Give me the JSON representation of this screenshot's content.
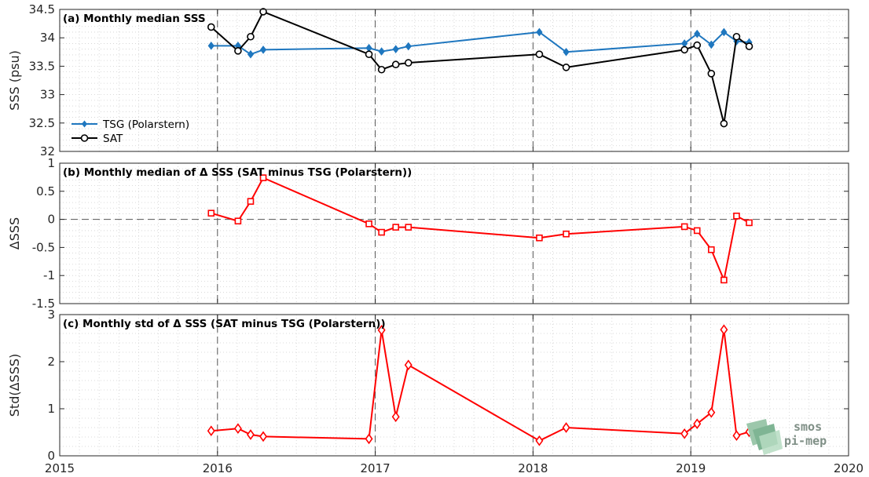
{
  "chart_data": [
    {
      "type": "line",
      "title": "(a) Monthly median SSS",
      "ylabel": "SSS (psu)",
      "xlim": [
        2015,
        2020
      ],
      "ylim": [
        32,
        34.5
      ],
      "yticks": [
        32,
        32.5,
        33,
        33.5,
        34,
        34.5
      ],
      "ytick_labels": [
        "32",
        "32.5",
        "33",
        "33.5",
        "34",
        "34.5"
      ],
      "grid": true,
      "legend_position": "lower-left",
      "series": [
        {
          "name": "TSG (Polarstern)",
          "color": "#1f77bf",
          "marker": "diamond-filled",
          "x": [
            2015.96,
            2016.13,
            2016.21,
            2016.29,
            2016.96,
            2017.04,
            2017.13,
            2017.21,
            2018.04,
            2018.21,
            2018.96,
            2019.04,
            2019.13,
            2019.21,
            2019.29,
            2019.37
          ],
          "values": [
            33.86,
            33.86,
            33.71,
            33.79,
            33.82,
            33.76,
            33.8,
            33.85,
            34.1,
            33.75,
            33.9,
            34.07,
            33.88,
            34.1,
            33.94,
            33.92
          ]
        },
        {
          "name": "SAT",
          "color": "#000000",
          "marker": "circle-open",
          "x": [
            2015.96,
            2016.13,
            2016.21,
            2016.29,
            2016.96,
            2017.04,
            2017.13,
            2017.21,
            2018.04,
            2018.21,
            2018.96,
            2019.04,
            2019.13,
            2019.21,
            2019.29,
            2019.37
          ],
          "values": [
            34.19,
            33.77,
            34.02,
            34.46,
            33.71,
            33.44,
            33.53,
            33.56,
            33.71,
            33.48,
            33.79,
            33.87,
            33.37,
            32.49,
            34.02,
            33.85
          ]
        }
      ]
    },
    {
      "type": "line",
      "title": "(b) Monthly median of Δ SSS (SAT minus TSG (Polarstern))",
      "ylabel": "ΔSSS",
      "xlim": [
        2015,
        2020
      ],
      "ylim": [
        -1.5,
        1
      ],
      "yticks": [
        -1.5,
        -1,
        -0.5,
        0,
        0.5,
        1
      ],
      "ytick_labels": [
        "-1.5",
        "-1",
        "-0.5",
        "0",
        "0.5",
        "1"
      ],
      "grid": true,
      "reference_line": 0,
      "series": [
        {
          "color": "#ff0000",
          "marker": "square-open",
          "x": [
            2015.96,
            2016.13,
            2016.21,
            2016.29,
            2016.96,
            2017.04,
            2017.13,
            2017.21,
            2018.04,
            2018.21,
            2018.96,
            2019.04,
            2019.13,
            2019.21,
            2019.29,
            2019.37
          ],
          "values": [
            0.11,
            -0.03,
            0.32,
            0.74,
            -0.08,
            -0.23,
            -0.14,
            -0.14,
            -0.33,
            -0.26,
            -0.13,
            -0.2,
            -0.54,
            -1.08,
            0.06,
            -0.06
          ]
        }
      ]
    },
    {
      "type": "line",
      "title": "(c) Monthly std of Δ SSS (SAT minus TSG (Polarstern))",
      "ylabel": "Std(ΔSSS)",
      "xlim": [
        2015,
        2020
      ],
      "ylim": [
        0,
        3
      ],
      "yticks": [
        0,
        1,
        2,
        3
      ],
      "ytick_labels": [
        "0",
        "1",
        "2",
        "3"
      ],
      "xticks": [
        2015,
        2016,
        2017,
        2018,
        2019,
        2020
      ],
      "xtick_labels": [
        "2015",
        "2016",
        "2017",
        "2018",
        "2019",
        "2020"
      ],
      "grid": true,
      "series": [
        {
          "color": "#ff0000",
          "marker": "diamond-open",
          "x": [
            2015.96,
            2016.13,
            2016.21,
            2016.29,
            2016.96,
            2017.04,
            2017.13,
            2017.21,
            2018.04,
            2018.21,
            2018.96,
            2019.04,
            2019.13,
            2019.21,
            2019.29,
            2019.37
          ],
          "values": [
            0.53,
            0.58,
            0.45,
            0.41,
            0.36,
            2.67,
            0.83,
            1.93,
            0.32,
            0.6,
            0.47,
            0.68,
            0.92,
            2.68,
            0.43,
            0.51
          ]
        }
      ]
    }
  ],
  "year_markers": [
    2016,
    2017,
    2018,
    2019
  ],
  "logo": {
    "line1": "smos",
    "line2": "pi-mep"
  }
}
